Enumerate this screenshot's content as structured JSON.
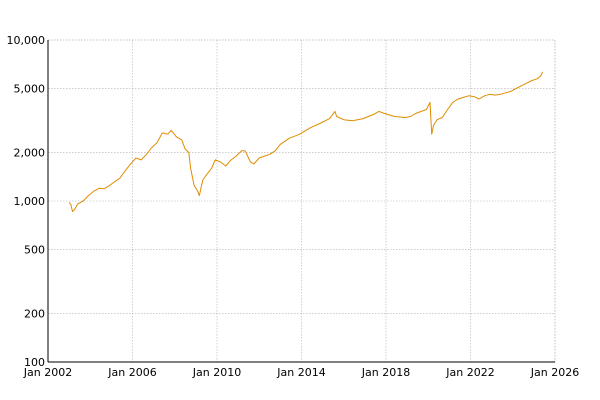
{
  "chart_data": {
    "type": "line",
    "title": "",
    "xlabel": "",
    "ylabel": "",
    "y_scale": "log",
    "ylim": [
      100,
      10000
    ],
    "xlim": [
      "2002-01-01",
      "2026-01-01"
    ],
    "grid": true,
    "y_ticks": [
      {
        "value": 100,
        "label": "100"
      },
      {
        "value": 200,
        "label": "200"
      },
      {
        "value": 500,
        "label": "500"
      },
      {
        "value": 1000,
        "label": "1,000"
      },
      {
        "value": 2000,
        "label": "2,000"
      },
      {
        "value": 5000,
        "label": "5,000"
      },
      {
        "value": 10000,
        "label": "10,000"
      }
    ],
    "x_ticks": [
      {
        "value": "2002-01-01",
        "label": "Jan 2002"
      },
      {
        "value": "2006-01-01",
        "label": "Jan 2006"
      },
      {
        "value": "2010-01-01",
        "label": "Jan 2010"
      },
      {
        "value": "2014-01-01",
        "label": "Jan 2014"
      },
      {
        "value": "2018-01-01",
        "label": "Jan 2018"
      },
      {
        "value": "2022-01-01",
        "label": "Jan 2022"
      },
      {
        "value": "2026-01-01",
        "label": "Jan 2026"
      }
    ],
    "series": [
      {
        "color": "#e08c00",
        "points": [
          [
            "2003-01-01",
            980
          ],
          [
            "2003-02-01",
            950
          ],
          [
            "2003-03-01",
            860
          ],
          [
            "2003-04-01",
            880
          ],
          [
            "2003-06-01",
            960
          ],
          [
            "2003-09-01",
            1000
          ],
          [
            "2003-12-01",
            1080
          ],
          [
            "2004-03-01",
            1150
          ],
          [
            "2004-06-01",
            1200
          ],
          [
            "2004-09-01",
            1190
          ],
          [
            "2004-12-01",
            1250
          ],
          [
            "2005-03-01",
            1320
          ],
          [
            "2005-06-01",
            1390
          ],
          [
            "2005-09-01",
            1550
          ],
          [
            "2005-12-01",
            1700
          ],
          [
            "2006-03-01",
            1850
          ],
          [
            "2006-06-01",
            1800
          ],
          [
            "2006-09-01",
            1950
          ],
          [
            "2006-12-01",
            2150
          ],
          [
            "2007-03-01",
            2300
          ],
          [
            "2007-06-01",
            2650
          ],
          [
            "2007-09-01",
            2600
          ],
          [
            "2007-11-01",
            2750
          ],
          [
            "2008-02-01",
            2500
          ],
          [
            "2008-05-01",
            2400
          ],
          [
            "2008-07-01",
            2100
          ],
          [
            "2008-09-01",
            2000
          ],
          [
            "2008-10-01",
            1600
          ],
          [
            "2008-12-01",
            1250
          ],
          [
            "2009-02-01",
            1150
          ],
          [
            "2009-03-01",
            1080
          ],
          [
            "2009-05-01",
            1350
          ],
          [
            "2009-08-01",
            1500
          ],
          [
            "2009-10-01",
            1600
          ],
          [
            "2009-12-01",
            1800
          ],
          [
            "2010-03-01",
            1750
          ],
          [
            "2010-06-01",
            1650
          ],
          [
            "2010-09-01",
            1800
          ],
          [
            "2010-12-01",
            1900
          ],
          [
            "2011-03-01",
            2050
          ],
          [
            "2011-05-01",
            2050
          ],
          [
            "2011-08-01",
            1750
          ],
          [
            "2011-10-01",
            1700
          ],
          [
            "2012-01-01",
            1850
          ],
          [
            "2012-04-01",
            1900
          ],
          [
            "2012-07-01",
            1950
          ],
          [
            "2012-10-01",
            2050
          ],
          [
            "2013-01-01",
            2250
          ],
          [
            "2013-06-01",
            2450
          ],
          [
            "2013-12-01",
            2600
          ],
          [
            "2014-06-01",
            2850
          ],
          [
            "2014-12-01",
            3050
          ],
          [
            "2015-05-01",
            3250
          ],
          [
            "2015-08-01",
            3600
          ],
          [
            "2015-09-01",
            3350
          ],
          [
            "2016-01-01",
            3200
          ],
          [
            "2016-06-01",
            3150
          ],
          [
            "2016-12-01",
            3250
          ],
          [
            "2017-06-01",
            3450
          ],
          [
            "2017-09-01",
            3600
          ],
          [
            "2017-12-01",
            3500
          ],
          [
            "2018-06-01",
            3350
          ],
          [
            "2018-12-01",
            3300
          ],
          [
            "2019-03-01",
            3350
          ],
          [
            "2019-06-01",
            3500
          ],
          [
            "2019-12-01",
            3700
          ],
          [
            "2020-02-01",
            4100
          ],
          [
            "2020-03-01",
            2600
          ],
          [
            "2020-04-01",
            2950
          ],
          [
            "2020-06-01",
            3200
          ],
          [
            "2020-09-01",
            3300
          ],
          [
            "2020-12-01",
            3700
          ],
          [
            "2021-03-01",
            4100
          ],
          [
            "2021-06-01",
            4300
          ],
          [
            "2021-09-01",
            4400
          ],
          [
            "2021-12-01",
            4500
          ],
          [
            "2022-03-01",
            4450
          ],
          [
            "2022-06-01",
            4300
          ],
          [
            "2022-09-01",
            4500
          ],
          [
            "2022-12-01",
            4600
          ],
          [
            "2023-03-01",
            4550
          ],
          [
            "2023-06-01",
            4600
          ],
          [
            "2023-09-01",
            4700
          ],
          [
            "2023-12-01",
            4800
          ],
          [
            "2024-03-01",
            5000
          ],
          [
            "2024-06-01",
            5200
          ],
          [
            "2024-09-01",
            5400
          ],
          [
            "2024-12-01",
            5600
          ],
          [
            "2025-03-01",
            5750
          ],
          [
            "2025-05-01",
            6000
          ],
          [
            "2025-06-01",
            6350
          ]
        ]
      }
    ]
  }
}
